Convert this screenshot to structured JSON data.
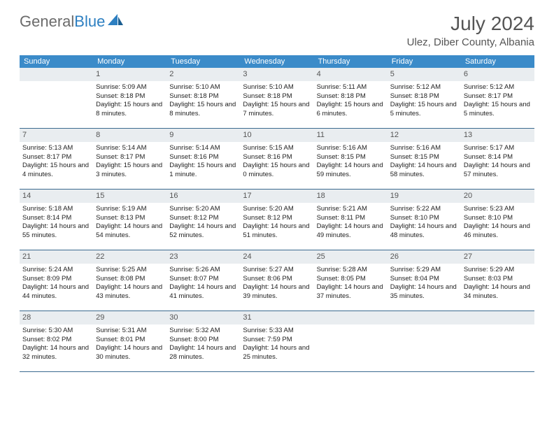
{
  "logo": {
    "text1": "General",
    "text2": "Blue"
  },
  "title": "July 2024",
  "location": "Ulez, Diber County, Albania",
  "weekdays": [
    "Sunday",
    "Monday",
    "Tuesday",
    "Wednesday",
    "Thursday",
    "Friday",
    "Saturday"
  ],
  "colors": {
    "header_bg": "#3b8bc9",
    "header_text": "#ffffff",
    "daynum_bg": "#e9edf0",
    "border": "#3b6a8f",
    "logo_gray": "#6b6b6b",
    "logo_blue": "#2d7fc1"
  },
  "weeks": [
    [
      {
        "n": "",
        "sr": "",
        "ss": "",
        "dl": ""
      },
      {
        "n": "1",
        "sr": "Sunrise: 5:09 AM",
        "ss": "Sunset: 8:18 PM",
        "dl": "Daylight: 15 hours and 8 minutes."
      },
      {
        "n": "2",
        "sr": "Sunrise: 5:10 AM",
        "ss": "Sunset: 8:18 PM",
        "dl": "Daylight: 15 hours and 8 minutes."
      },
      {
        "n": "3",
        "sr": "Sunrise: 5:10 AM",
        "ss": "Sunset: 8:18 PM",
        "dl": "Daylight: 15 hours and 7 minutes."
      },
      {
        "n": "4",
        "sr": "Sunrise: 5:11 AM",
        "ss": "Sunset: 8:18 PM",
        "dl": "Daylight: 15 hours and 6 minutes."
      },
      {
        "n": "5",
        "sr": "Sunrise: 5:12 AM",
        "ss": "Sunset: 8:18 PM",
        "dl": "Daylight: 15 hours and 5 minutes."
      },
      {
        "n": "6",
        "sr": "Sunrise: 5:12 AM",
        "ss": "Sunset: 8:17 PM",
        "dl": "Daylight: 15 hours and 5 minutes."
      }
    ],
    [
      {
        "n": "7",
        "sr": "Sunrise: 5:13 AM",
        "ss": "Sunset: 8:17 PM",
        "dl": "Daylight: 15 hours and 4 minutes."
      },
      {
        "n": "8",
        "sr": "Sunrise: 5:14 AM",
        "ss": "Sunset: 8:17 PM",
        "dl": "Daylight: 15 hours and 3 minutes."
      },
      {
        "n": "9",
        "sr": "Sunrise: 5:14 AM",
        "ss": "Sunset: 8:16 PM",
        "dl": "Daylight: 15 hours and 1 minute."
      },
      {
        "n": "10",
        "sr": "Sunrise: 5:15 AM",
        "ss": "Sunset: 8:16 PM",
        "dl": "Daylight: 15 hours and 0 minutes."
      },
      {
        "n": "11",
        "sr": "Sunrise: 5:16 AM",
        "ss": "Sunset: 8:15 PM",
        "dl": "Daylight: 14 hours and 59 minutes."
      },
      {
        "n": "12",
        "sr": "Sunrise: 5:16 AM",
        "ss": "Sunset: 8:15 PM",
        "dl": "Daylight: 14 hours and 58 minutes."
      },
      {
        "n": "13",
        "sr": "Sunrise: 5:17 AM",
        "ss": "Sunset: 8:14 PM",
        "dl": "Daylight: 14 hours and 57 minutes."
      }
    ],
    [
      {
        "n": "14",
        "sr": "Sunrise: 5:18 AM",
        "ss": "Sunset: 8:14 PM",
        "dl": "Daylight: 14 hours and 55 minutes."
      },
      {
        "n": "15",
        "sr": "Sunrise: 5:19 AM",
        "ss": "Sunset: 8:13 PM",
        "dl": "Daylight: 14 hours and 54 minutes."
      },
      {
        "n": "16",
        "sr": "Sunrise: 5:20 AM",
        "ss": "Sunset: 8:12 PM",
        "dl": "Daylight: 14 hours and 52 minutes."
      },
      {
        "n": "17",
        "sr": "Sunrise: 5:20 AM",
        "ss": "Sunset: 8:12 PM",
        "dl": "Daylight: 14 hours and 51 minutes."
      },
      {
        "n": "18",
        "sr": "Sunrise: 5:21 AM",
        "ss": "Sunset: 8:11 PM",
        "dl": "Daylight: 14 hours and 49 minutes."
      },
      {
        "n": "19",
        "sr": "Sunrise: 5:22 AM",
        "ss": "Sunset: 8:10 PM",
        "dl": "Daylight: 14 hours and 48 minutes."
      },
      {
        "n": "20",
        "sr": "Sunrise: 5:23 AM",
        "ss": "Sunset: 8:10 PM",
        "dl": "Daylight: 14 hours and 46 minutes."
      }
    ],
    [
      {
        "n": "21",
        "sr": "Sunrise: 5:24 AM",
        "ss": "Sunset: 8:09 PM",
        "dl": "Daylight: 14 hours and 44 minutes."
      },
      {
        "n": "22",
        "sr": "Sunrise: 5:25 AM",
        "ss": "Sunset: 8:08 PM",
        "dl": "Daylight: 14 hours and 43 minutes."
      },
      {
        "n": "23",
        "sr": "Sunrise: 5:26 AM",
        "ss": "Sunset: 8:07 PM",
        "dl": "Daylight: 14 hours and 41 minutes."
      },
      {
        "n": "24",
        "sr": "Sunrise: 5:27 AM",
        "ss": "Sunset: 8:06 PM",
        "dl": "Daylight: 14 hours and 39 minutes."
      },
      {
        "n": "25",
        "sr": "Sunrise: 5:28 AM",
        "ss": "Sunset: 8:05 PM",
        "dl": "Daylight: 14 hours and 37 minutes."
      },
      {
        "n": "26",
        "sr": "Sunrise: 5:29 AM",
        "ss": "Sunset: 8:04 PM",
        "dl": "Daylight: 14 hours and 35 minutes."
      },
      {
        "n": "27",
        "sr": "Sunrise: 5:29 AM",
        "ss": "Sunset: 8:03 PM",
        "dl": "Daylight: 14 hours and 34 minutes."
      }
    ],
    [
      {
        "n": "28",
        "sr": "Sunrise: 5:30 AM",
        "ss": "Sunset: 8:02 PM",
        "dl": "Daylight: 14 hours and 32 minutes."
      },
      {
        "n": "29",
        "sr": "Sunrise: 5:31 AM",
        "ss": "Sunset: 8:01 PM",
        "dl": "Daylight: 14 hours and 30 minutes."
      },
      {
        "n": "30",
        "sr": "Sunrise: 5:32 AM",
        "ss": "Sunset: 8:00 PM",
        "dl": "Daylight: 14 hours and 28 minutes."
      },
      {
        "n": "31",
        "sr": "Sunrise: 5:33 AM",
        "ss": "Sunset: 7:59 PM",
        "dl": "Daylight: 14 hours and 25 minutes."
      },
      {
        "n": "",
        "sr": "",
        "ss": "",
        "dl": ""
      },
      {
        "n": "",
        "sr": "",
        "ss": "",
        "dl": ""
      },
      {
        "n": "",
        "sr": "",
        "ss": "",
        "dl": ""
      }
    ]
  ]
}
